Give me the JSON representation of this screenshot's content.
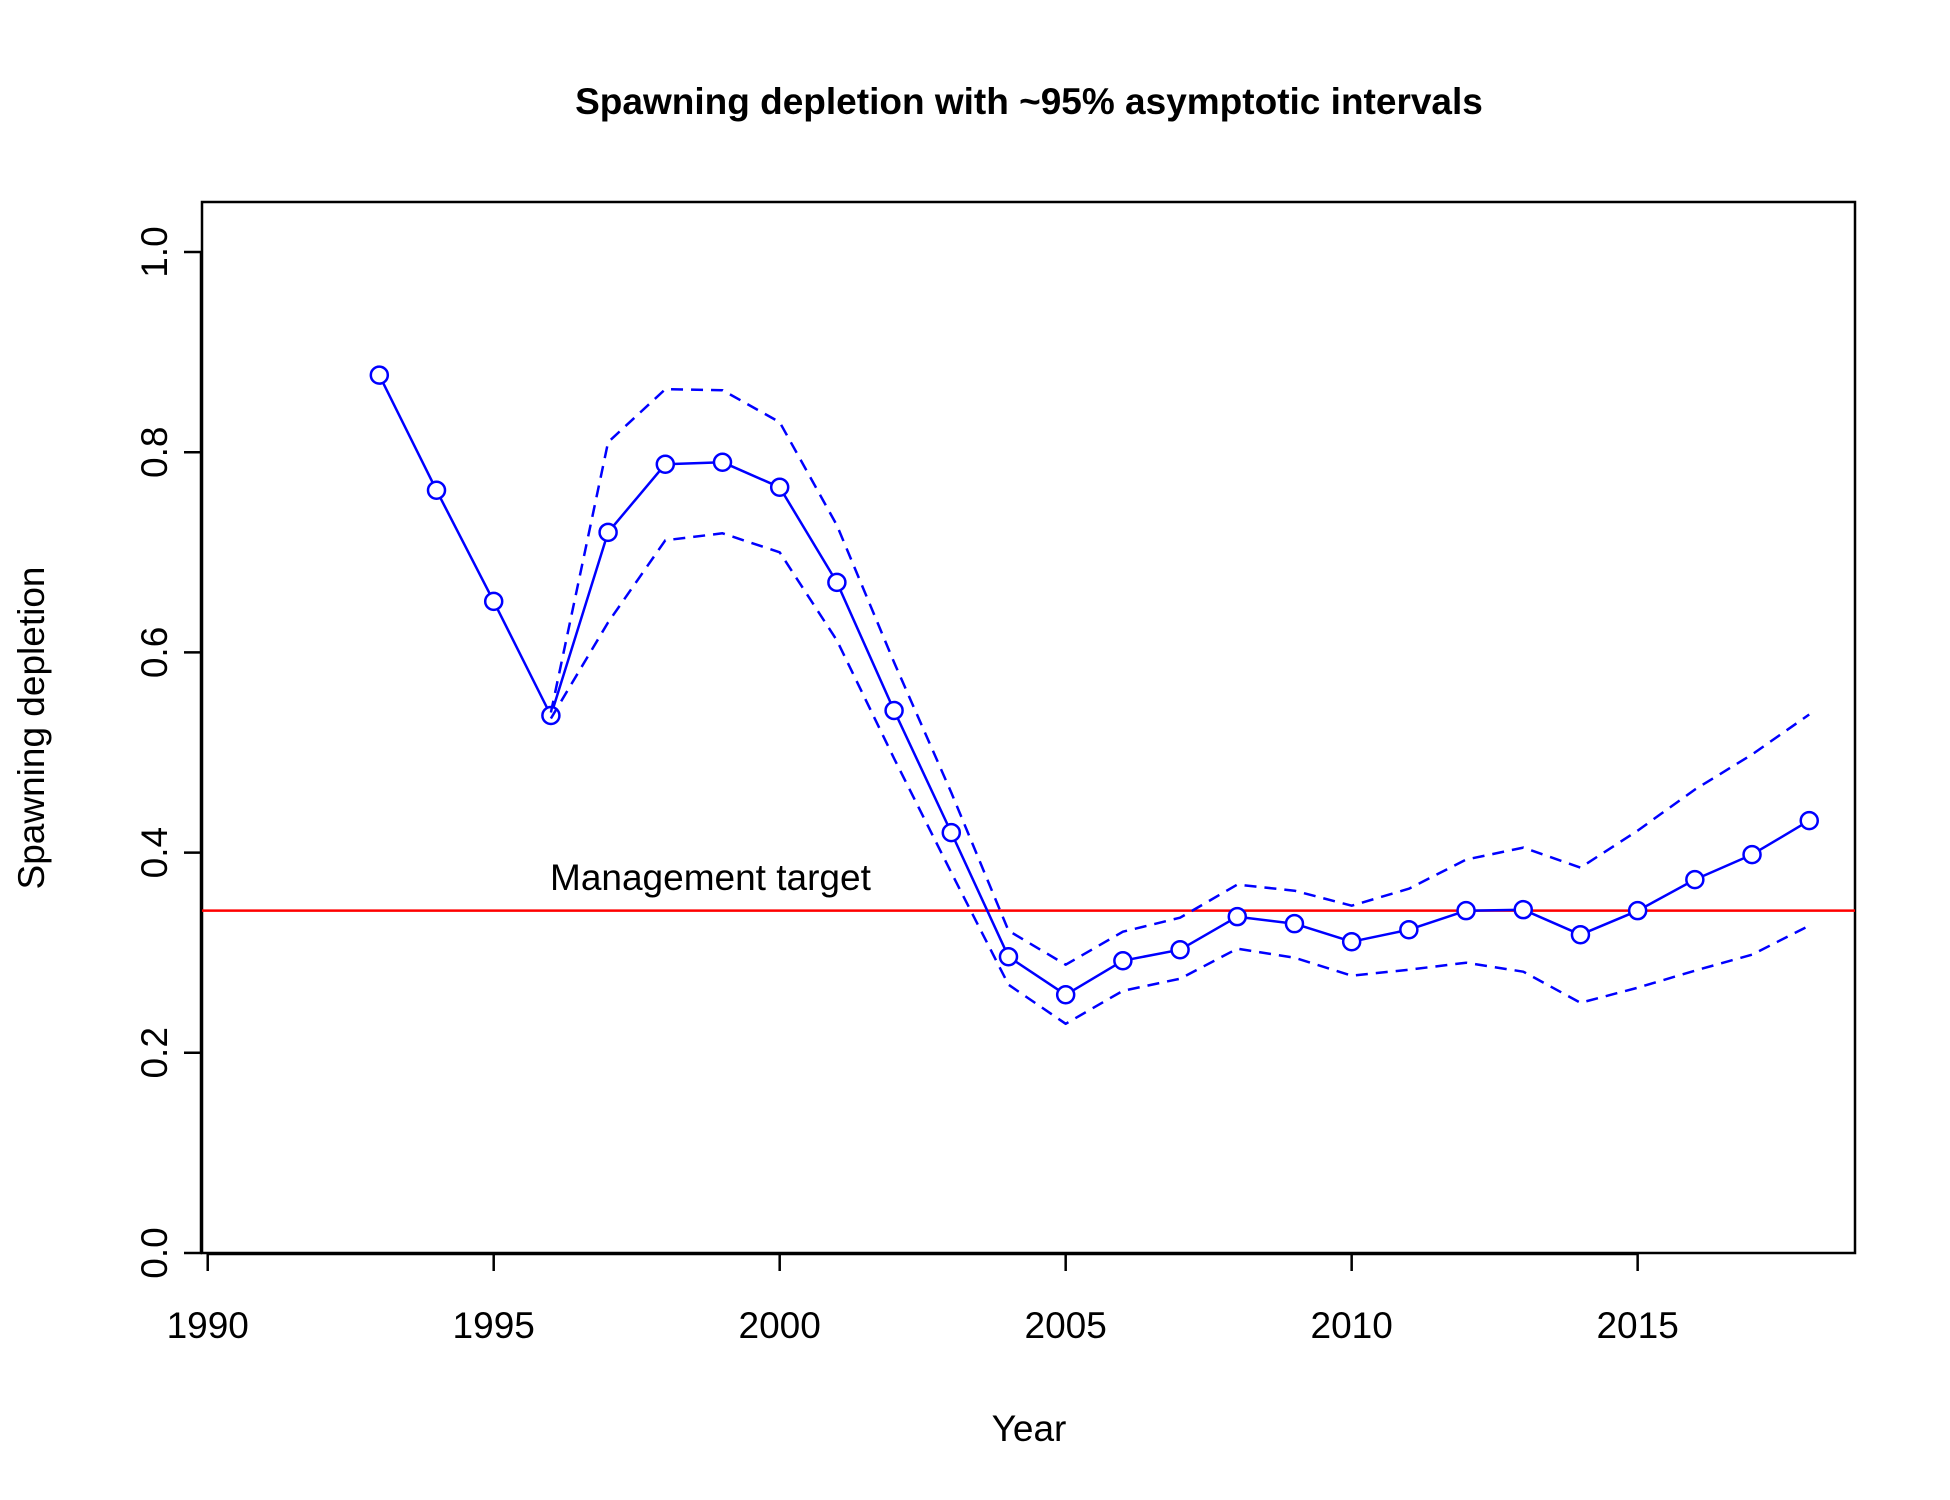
{
  "chart_data": {
    "type": "line",
    "title": "Spawning depletion with ~95% asymptotic intervals",
    "xlabel": "Year",
    "ylabel": "Spawning depletion",
    "xlim": [
      1989.9,
      2018.8
    ],
    "ylim": [
      0,
      1.05
    ],
    "xticks": [
      "1990",
      "1995",
      "2000",
      "2005",
      "2010",
      "2015"
    ],
    "yticks": [
      "0.0",
      "0.2",
      "0.4",
      "0.6",
      "0.8",
      "1.0"
    ],
    "grid": false,
    "colors": {
      "series": "#0000ff",
      "target": "#ff0000",
      "axis": "#000000"
    },
    "x": [
      1993,
      1994,
      1995,
      1996,
      1997,
      1998,
      1999,
      2000,
      2001,
      2002,
      2003,
      2004,
      2005,
      2006,
      2007,
      2008,
      2009,
      2010,
      2011,
      2012,
      2013,
      2014,
      2015,
      2016,
      2017,
      2018
    ],
    "series": [
      {
        "style": "solid-with-circles",
        "values": [
          0.877,
          0.762,
          0.651,
          0.537,
          0.72,
          0.788,
          0.79,
          0.765,
          0.67,
          0.542,
          0.42,
          0.296,
          0.258,
          0.292,
          0.303,
          0.336,
          0.329,
          0.311,
          0.323,
          0.342,
          0.343,
          0.318,
          0.342,
          0.373,
          0.398,
          0.432
        ]
      },
      {
        "style": "dashed-upper",
        "values": [
          null,
          null,
          null,
          0.54,
          0.81,
          0.863,
          0.862,
          0.83,
          0.727,
          0.59,
          0.46,
          0.322,
          0.288,
          0.321,
          0.335,
          0.368,
          0.362,
          0.347,
          0.364,
          0.393,
          0.405,
          0.385,
          0.422,
          0.463,
          0.498,
          0.538
        ]
      },
      {
        "style": "dashed-lower",
        "values": [
          null,
          null,
          null,
          0.534,
          0.63,
          0.712,
          0.719,
          0.7,
          0.612,
          0.494,
          0.38,
          0.268,
          0.229,
          0.262,
          0.274,
          0.304,
          0.295,
          0.277,
          0.283,
          0.29,
          0.281,
          0.25,
          0.265,
          0.282,
          0.298,
          0.327
        ]
      }
    ],
    "reference_line": {
      "y": 0.342,
      "label": "Management target"
    }
  }
}
